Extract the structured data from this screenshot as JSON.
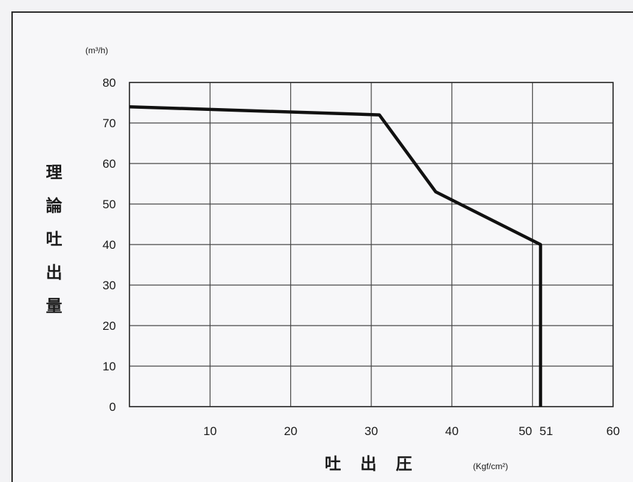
{
  "chart_data": {
    "type": "line",
    "ylabel": "理論吐出量",
    "xlabel": "吐出圧",
    "y_unit": "(m³/h)",
    "x_unit": "(Kgf/cm²)",
    "xlim": [
      0,
      60
    ],
    "ylim": [
      0,
      80
    ],
    "x_ticks": [
      10,
      20,
      30,
      40,
      50,
      51,
      60
    ],
    "y_ticks": [
      0,
      10,
      20,
      30,
      40,
      50,
      60,
      70,
      80
    ],
    "x_grid": [
      0,
      10,
      20,
      30,
      40,
      50,
      60
    ],
    "y_grid": [
      0,
      10,
      20,
      30,
      40,
      50,
      60,
      70,
      80
    ],
    "grid": true,
    "series": [
      {
        "x": [
          0,
          31,
          38,
          51,
          51
        ],
        "y": [
          74,
          72,
          53,
          40,
          0
        ]
      }
    ]
  }
}
